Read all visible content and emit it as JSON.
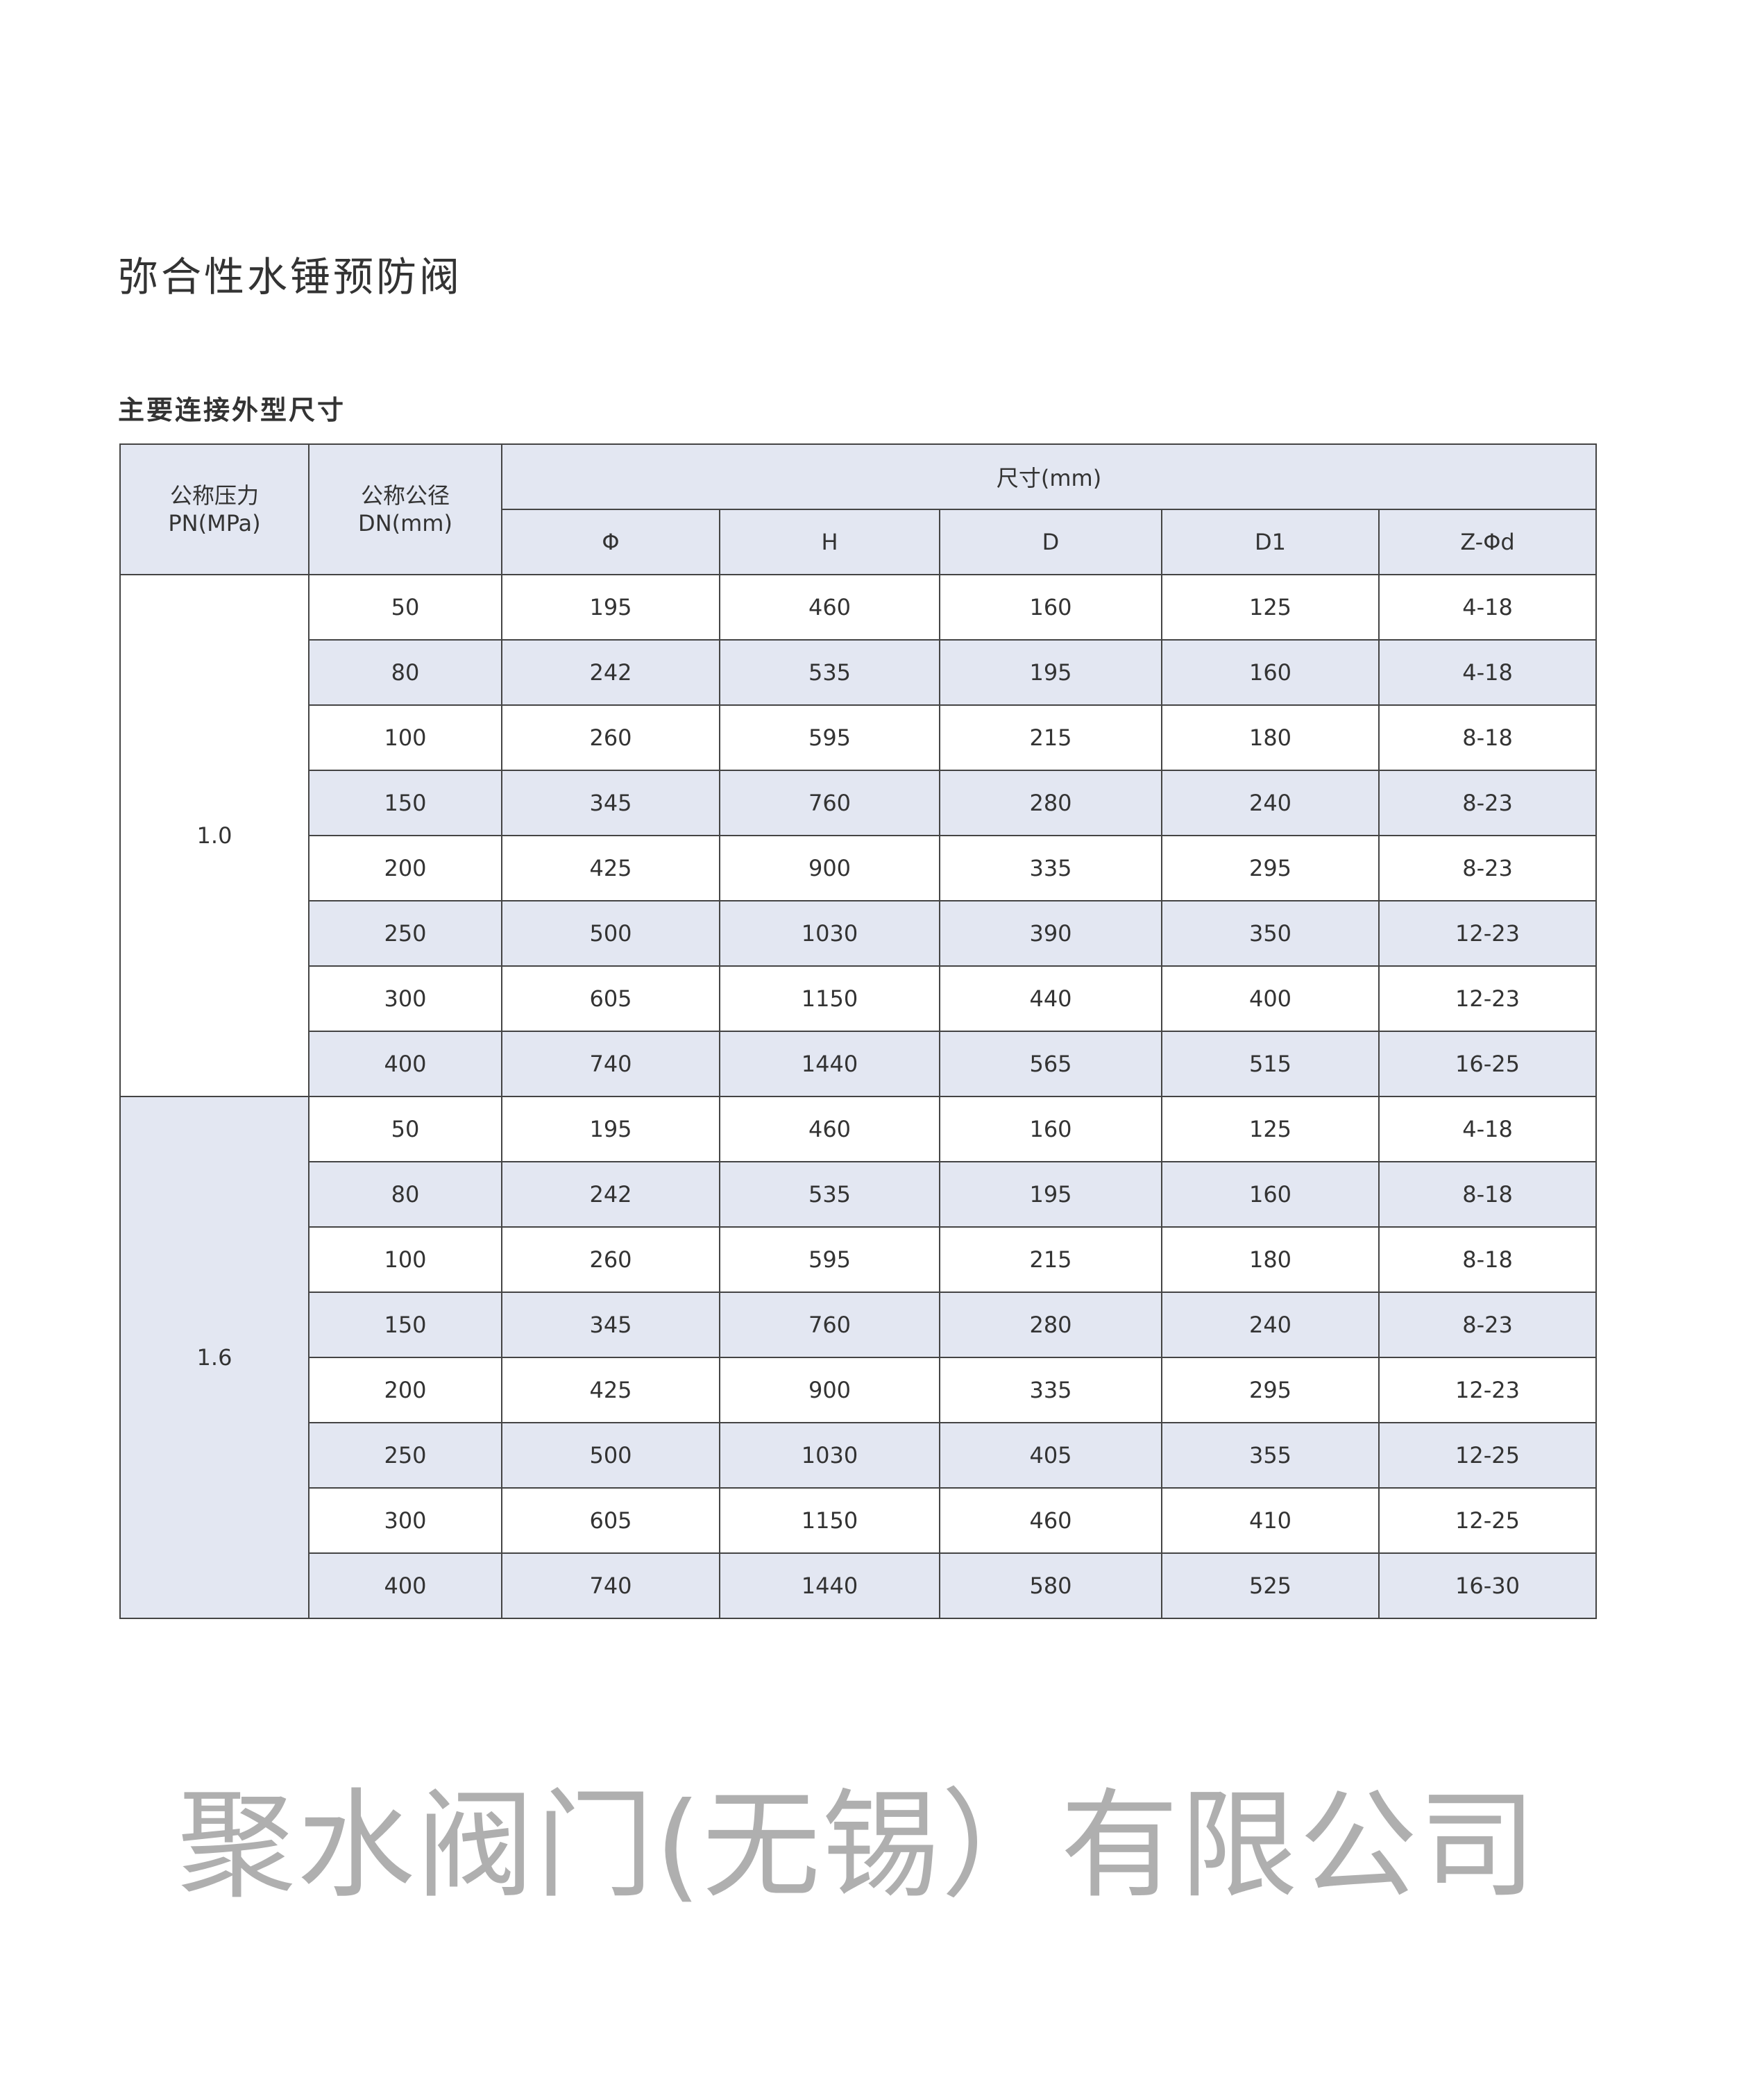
{
  "title": "弥合性水锤预防阀",
  "subtitle": "主要连接外型尺寸",
  "watermark": "聚水阀门(无锡）有限公司",
  "colors": {
    "header_band": "#e3e7f2",
    "border": "#444444",
    "watermark": "#8a8a8a"
  },
  "table": {
    "header": {
      "pn_line1": "公称压力",
      "pn_line2": "PN(MPa)",
      "dn_line1": "公称公径",
      "dn_line2": "DN(mm)",
      "dims": "尺寸(mm)",
      "columns": [
        "Φ",
        "H",
        "D",
        "D1",
        "Z-Φd"
      ]
    },
    "groups": [
      {
        "pn": "1.0",
        "rows": [
          [
            "50",
            "195",
            "460",
            "160",
            "125",
            "4-18"
          ],
          [
            "80",
            "242",
            "535",
            "195",
            "160",
            "4-18"
          ],
          [
            "100",
            "260",
            "595",
            "215",
            "180",
            "8-18"
          ],
          [
            "150",
            "345",
            "760",
            "280",
            "240",
            "8-23"
          ],
          [
            "200",
            "425",
            "900",
            "335",
            "295",
            "8-23"
          ],
          [
            "250",
            "500",
            "1030",
            "390",
            "350",
            "12-23"
          ],
          [
            "300",
            "605",
            "1150",
            "440",
            "400",
            "12-23"
          ],
          [
            "400",
            "740",
            "1440",
            "565",
            "515",
            "16-25"
          ]
        ]
      },
      {
        "pn": "1.6",
        "rows": [
          [
            "50",
            "195",
            "460",
            "160",
            "125",
            "4-18"
          ],
          [
            "80",
            "242",
            "535",
            "195",
            "160",
            "8-18"
          ],
          [
            "100",
            "260",
            "595",
            "215",
            "180",
            "8-18"
          ],
          [
            "150",
            "345",
            "760",
            "280",
            "240",
            "8-23"
          ],
          [
            "200",
            "425",
            "900",
            "335",
            "295",
            "12-23"
          ],
          [
            "250",
            "500",
            "1030",
            "405",
            "355",
            "12-25"
          ],
          [
            "300",
            "605",
            "1150",
            "460",
            "410",
            "12-25"
          ],
          [
            "400",
            "740",
            "1440",
            "580",
            "525",
            "16-30"
          ]
        ]
      }
    ]
  }
}
